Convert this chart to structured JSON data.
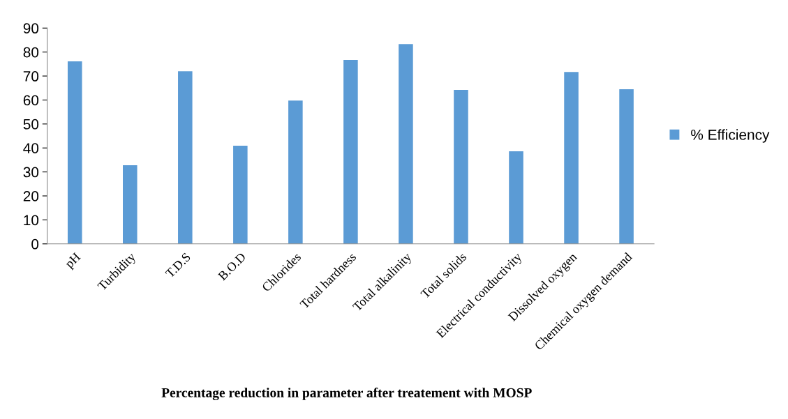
{
  "chart_data": {
    "type": "bar",
    "title": "Percentage reduction in parameter after treatement with MOSP",
    "categories": [
      "pH",
      "Turbidity",
      "T.D.S",
      "B.O.D",
      "Chlorides",
      "Total hardness",
      "Total alkalinity",
      "Total solids",
      "Electrical conductivity",
      "Dissolved oxygen",
      "Chemical oxygen demand"
    ],
    "series": [
      {
        "name": "% Efficiency",
        "color": "#5b9bd5",
        "values": [
          76.1,
          32.8,
          72,
          40.9,
          59.8,
          76.7,
          83.3,
          64.2,
          38.6,
          71.7,
          64.5
        ]
      }
    ],
    "ylim": [
      0,
      90
    ],
    "yticks": [
      0,
      10,
      20,
      30,
      40,
      50,
      60,
      70,
      80,
      90
    ],
    "grid": false,
    "legend": "right"
  }
}
